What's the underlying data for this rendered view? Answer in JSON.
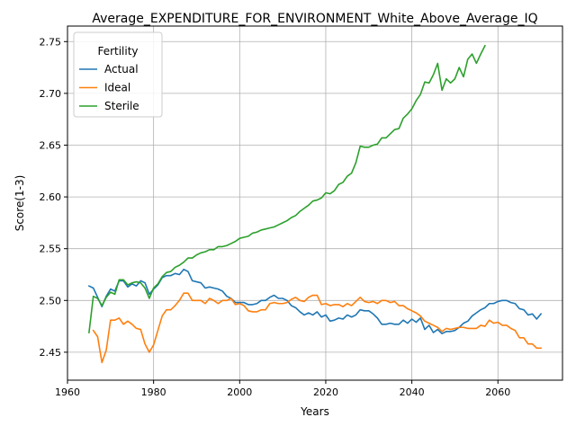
{
  "chart_data": {
    "type": "line",
    "title": "Average_EXPENDITURE_FOR_ENVIRONMENT_White_Above_Average_IQ",
    "xlabel": "Years",
    "ylabel": "Score(1-3)",
    "xlim": [
      1960,
      2075
    ],
    "ylim": [
      2.423,
      2.765
    ],
    "xticks": [
      1960,
      1980,
      2000,
      2020,
      2040,
      2060
    ],
    "yticks": [
      2.45,
      2.5,
      2.55,
      2.6,
      2.65,
      2.7,
      2.75
    ],
    "ytick_labels": [
      "2.45",
      "2.50",
      "2.55",
      "2.60",
      "2.65",
      "2.70",
      "2.75"
    ],
    "grid": true,
    "legend": {
      "title": "Fertility",
      "placement": "top-left"
    },
    "series": [
      {
        "name": "Actual",
        "color": "#1f77b4",
        "x": [
          1965,
          1966,
          1967,
          1968,
          1969,
          1970,
          1971,
          1972,
          1973,
          1974,
          1975,
          1976,
          1977,
          1978,
          1979,
          1980,
          1981,
          1982,
          1983,
          1984,
          1985,
          1986,
          1987,
          1988,
          1989,
          1990,
          1991,
          1992,
          1993,
          1994,
          1995,
          1996,
          1997,
          1998,
          1999,
          2000,
          2001,
          2002,
          2003,
          2004,
          2005,
          2006,
          2007,
          2008,
          2009,
          2010,
          2011,
          2012,
          2013,
          2014,
          2015,
          2016,
          2017,
          2018,
          2019,
          2020,
          2021,
          2022,
          2023,
          2024,
          2025,
          2026,
          2027,
          2028,
          2029,
          2030,
          2031,
          2032,
          2033,
          2034,
          2035,
          2036,
          2037,
          2038,
          2039,
          2040,
          2041,
          2042,
          2043,
          2044,
          2045,
          2046,
          2047,
          2048,
          2049,
          2050,
          2051,
          2052,
          2053,
          2054,
          2055,
          2056,
          2057,
          2058,
          2059,
          2060,
          2061,
          2062,
          2063,
          2064,
          2065,
          2066,
          2067,
          2068,
          2069,
          2070
        ],
        "y": [
          2.514,
          2.512,
          2.503,
          2.494,
          2.504,
          2.511,
          2.509,
          2.519,
          2.519,
          2.513,
          2.516,
          2.514,
          2.519,
          2.517,
          2.506,
          2.511,
          2.515,
          2.522,
          2.524,
          2.524,
          2.526,
          2.525,
          2.53,
          2.528,
          2.519,
          2.518,
          2.517,
          2.512,
          2.513,
          2.512,
          2.511,
          2.509,
          2.504,
          2.502,
          2.498,
          2.498,
          2.498,
          2.496,
          2.496,
          2.497,
          2.5,
          2.5,
          2.503,
          2.505,
          2.502,
          2.502,
          2.5,
          2.495,
          2.493,
          2.489,
          2.486,
          2.488,
          2.486,
          2.489,
          2.484,
          2.486,
          2.48,
          2.481,
          2.483,
          2.482,
          2.486,
          2.484,
          2.486,
          2.491,
          2.49,
          2.49,
          2.487,
          2.483,
          2.477,
          2.477,
          2.478,
          2.477,
          2.477,
          2.481,
          2.478,
          2.482,
          2.479,
          2.483,
          2.472,
          2.476,
          2.469,
          2.472,
          2.468,
          2.47,
          2.47,
          2.471,
          2.474,
          2.478,
          2.48,
          2.485,
          2.488,
          2.491,
          2.493,
          2.497,
          2.497,
          2.499,
          2.5,
          2.5,
          2.498,
          2.497,
          2.492,
          2.491,
          2.486,
          2.487,
          2.482,
          2.487
        ]
      },
      {
        "name": "Ideal",
        "color": "#ff7f0e",
        "x": [
          1966,
          1967,
          1968,
          1969,
          1970,
          1971,
          1972,
          1973,
          1974,
          1975,
          1976,
          1977,
          1978,
          1979,
          1980,
          1981,
          1982,
          1983,
          1984,
          1985,
          1986,
          1987,
          1988,
          1989,
          1990,
          1991,
          1992,
          1993,
          1994,
          1995,
          1996,
          1997,
          1998,
          1999,
          2000,
          2001,
          2002,
          2003,
          2004,
          2005,
          2006,
          2007,
          2008,
          2009,
          2010,
          2011,
          2012,
          2013,
          2014,
          2015,
          2016,
          2017,
          2018,
          2019,
          2020,
          2021,
          2022,
          2023,
          2024,
          2025,
          2026,
          2027,
          2028,
          2029,
          2030,
          2031,
          2032,
          2033,
          2034,
          2035,
          2036,
          2037,
          2038,
          2039,
          2040,
          2041,
          2042,
          2043,
          2044,
          2045,
          2046,
          2047,
          2048,
          2049,
          2050,
          2051,
          2052,
          2053,
          2054,
          2055,
          2056,
          2057,
          2058,
          2059,
          2060,
          2061,
          2062,
          2063,
          2064,
          2065,
          2066,
          2067,
          2068,
          2069,
          2070
        ],
        "y": [
          2.471,
          2.465,
          2.44,
          2.452,
          2.481,
          2.481,
          2.483,
          2.477,
          2.48,
          2.477,
          2.473,
          2.472,
          2.458,
          2.45,
          2.457,
          2.471,
          2.485,
          2.491,
          2.491,
          2.495,
          2.5,
          2.507,
          2.507,
          2.5,
          2.5,
          2.5,
          2.497,
          2.502,
          2.5,
          2.497,
          2.5,
          2.5,
          2.502,
          2.496,
          2.497,
          2.495,
          2.49,
          2.489,
          2.489,
          2.491,
          2.491,
          2.497,
          2.498,
          2.497,
          2.497,
          2.498,
          2.501,
          2.503,
          2.5,
          2.499,
          2.503,
          2.505,
          2.505,
          2.496,
          2.497,
          2.495,
          2.496,
          2.496,
          2.494,
          2.497,
          2.495,
          2.499,
          2.503,
          2.499,
          2.498,
          2.499,
          2.497,
          2.5,
          2.5,
          2.498,
          2.499,
          2.495,
          2.495,
          2.492,
          2.49,
          2.488,
          2.485,
          2.48,
          2.478,
          2.476,
          2.474,
          2.47,
          2.473,
          2.472,
          2.473,
          2.474,
          2.474,
          2.473,
          2.473,
          2.473,
          2.476,
          2.475,
          2.481,
          2.478,
          2.479,
          2.476,
          2.476,
          2.473,
          2.471,
          2.464,
          2.464,
          2.458,
          2.458,
          2.454,
          2.454
        ]
      },
      {
        "name": "Sterile",
        "color": "#2ca02c",
        "x": [
          1965,
          1966,
          1967,
          1968,
          1969,
          1970,
          1971,
          1972,
          1973,
          1974,
          1975,
          1976,
          1977,
          1978,
          1979,
          1980,
          1981,
          1982,
          1983,
          1984,
          1985,
          1986,
          1987,
          1988,
          1989,
          1990,
          1991,
          1992,
          1993,
          1994,
          1995,
          1996,
          1997,
          1998,
          1999,
          2000,
          2001,
          2002,
          2003,
          2004,
          2005,
          2006,
          2007,
          2008,
          2009,
          2010,
          2011,
          2012,
          2013,
          2014,
          2015,
          2016,
          2017,
          2018,
          2019,
          2020,
          2021,
          2022,
          2023,
          2024,
          2025,
          2026,
          2027,
          2028,
          2029,
          2030,
          2031,
          2032,
          2033,
          2034,
          2035,
          2036,
          2037,
          2038,
          2039,
          2040,
          2041,
          2042,
          2043,
          2044,
          2045,
          2046,
          2047,
          2048,
          2049,
          2050,
          2051,
          2052,
          2053,
          2054,
          2055,
          2056,
          2057
        ],
        "y": [
          2.469,
          2.504,
          2.502,
          2.495,
          2.503,
          2.508,
          2.506,
          2.52,
          2.52,
          2.515,
          2.517,
          2.518,
          2.517,
          2.512,
          2.502,
          2.512,
          2.516,
          2.523,
          2.527,
          2.528,
          2.532,
          2.534,
          2.537,
          2.541,
          2.541,
          2.544,
          2.546,
          2.547,
          2.549,
          2.549,
          2.552,
          2.552,
          2.553,
          2.555,
          2.557,
          2.56,
          2.561,
          2.562,
          2.565,
          2.566,
          2.568,
          2.569,
          2.57,
          2.571,
          2.573,
          2.575,
          2.577,
          2.58,
          2.582,
          2.586,
          2.589,
          2.592,
          2.596,
          2.597,
          2.599,
          2.604,
          2.603,
          2.606,
          2.612,
          2.614,
          2.62,
          2.623,
          2.633,
          2.649,
          2.648,
          2.648,
          2.65,
          2.651,
          2.657,
          2.657,
          2.661,
          2.665,
          2.666,
          2.676,
          2.68,
          2.685,
          2.693,
          2.699,
          2.711,
          2.71,
          2.718,
          2.729,
          2.703,
          2.714,
          2.71,
          2.714,
          2.725,
          2.716,
          2.733,
          2.738,
          2.729,
          2.738,
          2.746
        ]
      }
    ]
  }
}
